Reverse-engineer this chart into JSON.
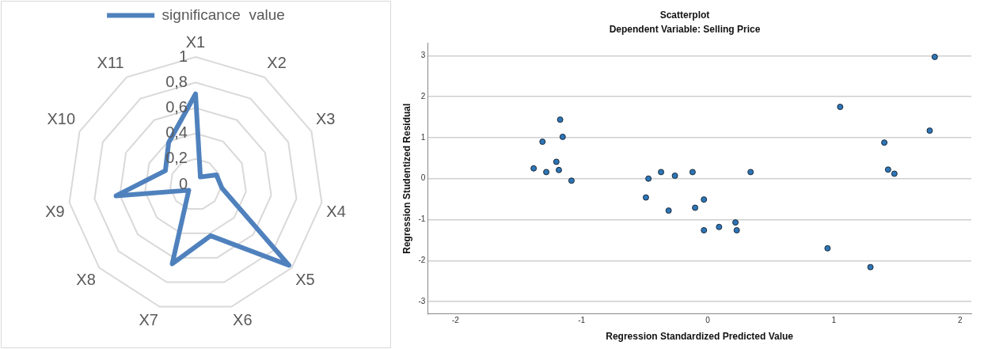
{
  "chart_data": [
    {
      "type": "radar",
      "categories": [
        "X1",
        "X2",
        "X3",
        "X4",
        "X5",
        "X6",
        "X7",
        "X8",
        "X9",
        "X10",
        "X11"
      ],
      "series": [
        {
          "name": "significance  value",
          "color": "#4f81bd",
          "values": [
            0.71,
            0.07,
            0.18,
            0.21,
            0.97,
            0.42,
            0.65,
            0.07,
            0.63,
            0.26,
            0.39
          ]
        }
      ],
      "ylim": [
        0,
        1
      ],
      "yticks": [
        0,
        {
          "value": 0.2,
          "label": "0,2"
        },
        {
          "value": 0.4,
          "label": "0,4"
        },
        {
          "value": 0.6,
          "label": "0,6"
        },
        {
          "value": 0.8,
          "label": "0,8"
        },
        1
      ],
      "legend": "top",
      "grid": true,
      "marker": "none"
    },
    {
      "type": "scatter",
      "title": "Scatterplot",
      "subtitle": "Dependent Variable: Selling Price",
      "xlabel": "Regression Standardized Predicted Value",
      "ylabel": "Regression Studentized Residual",
      "x": [
        1.8,
        1.05,
        1.76,
        1.4,
        1.43,
        1.48,
        -0.12,
        0.34,
        -0.03,
        -0.1,
        -0.03,
        0.09,
        0.22,
        0.23,
        0.95,
        1.29,
        -1.38,
        -1.31,
        -1.28,
        -1.17,
        -1.15,
        -1.2,
        -1.18,
        -1.08,
        -0.49,
        -0.47,
        -0.37,
        -0.31,
        -0.26
      ],
      "values": [
        2.97,
        1.75,
        1.17,
        0.88,
        0.22,
        0.12,
        0.16,
        0.16,
        -0.51,
        -0.71,
        -1.26,
        -1.18,
        -1.07,
        -1.26,
        -1.7,
        -2.16,
        0.25,
        0.9,
        0.16,
        1.44,
        1.02,
        0.41,
        0.21,
        -0.05,
        -0.46,
        0.0,
        0.16,
        -0.78,
        0.07
      ],
      "color": "#2e75b6",
      "xlim": [
        -2.22,
        2.09
      ],
      "xticks": [
        -2,
        -1,
        0,
        1,
        2
      ],
      "ylim": [
        -3.3,
        3.3
      ],
      "yticks": [
        -3,
        -2,
        -1,
        0,
        1,
        2,
        3
      ],
      "grid": "y",
      "legend": false,
      "marker": "circle"
    }
  ]
}
